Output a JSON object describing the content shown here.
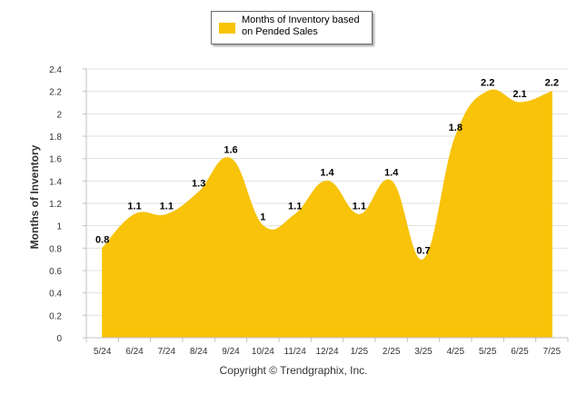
{
  "colors": {
    "area": "#f8c308",
    "grid": "#e2e2e2",
    "axis": "#c0c0c0",
    "tick_text": "#333333",
    "label_text": "#000000"
  },
  "legend": {
    "label": "Months of Inventory based on Pended Sales"
  },
  "footer": {
    "copyright": "Copyright © Trendgraphix, Inc."
  },
  "chart_data": {
    "type": "area",
    "categories": [
      "5/24",
      "6/24",
      "7/24",
      "8/24",
      "9/24",
      "10/24",
      "11/24",
      "12/24",
      "1/25",
      "2/25",
      "3/25",
      "4/25",
      "5/25",
      "6/25",
      "7/25"
    ],
    "series": [
      {
        "name": "Months of Inventory based on Pended Sales",
        "values": [
          0.8,
          1.1,
          1.1,
          1.3,
          1.6,
          1,
          1.1,
          1.4,
          1.1,
          1.4,
          0.7,
          1.8,
          2.2,
          2.1,
          2.2
        ]
      }
    ],
    "ylabel": "Months of Inventory",
    "ylim": [
      0,
      2.4
    ],
    "yticks": [
      "0",
      "0.2",
      "0.4",
      "0.6",
      "0.8",
      "1",
      "1.2",
      "1.4",
      "1.6",
      "1.8",
      "2",
      "2.2",
      "2.4"
    ],
    "grid": true,
    "legend_position": "top-center",
    "smooth": true
  }
}
